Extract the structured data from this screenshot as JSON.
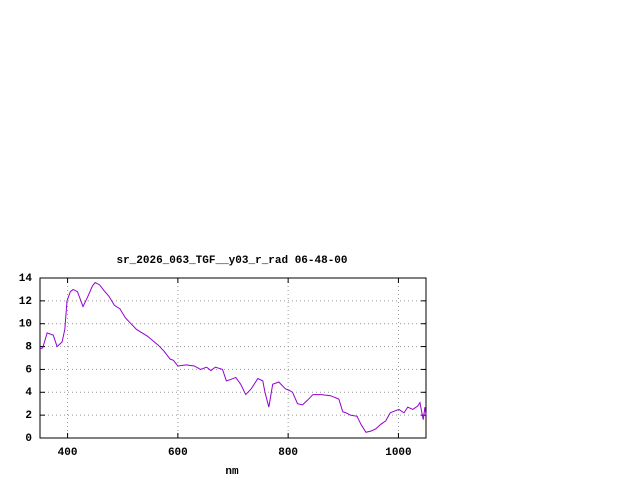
{
  "chart_data": {
    "type": "line",
    "title": "sr_2026_063_TGF__y03_r_rad 06-48-00",
    "x_label": "nm",
    "x": [
      350,
      355,
      363,
      374,
      381,
      390,
      395,
      399,
      405,
      410,
      418,
      428,
      436,
      445,
      450,
      458,
      466,
      475,
      485,
      495,
      505,
      515,
      525,
      535,
      545,
      555,
      565,
      575,
      586,
      592,
      600,
      615,
      630,
      641,
      652,
      660,
      668,
      681,
      688,
      695,
      705,
      714,
      723,
      733,
      745,
      754,
      758,
      765,
      772,
      783,
      795,
      801,
      808,
      817,
      826,
      835,
      845,
      860,
      877,
      892,
      899,
      905,
      913,
      925,
      932,
      941,
      950,
      959,
      968,
      977,
      985,
      990,
      1001,
      1010,
      1017,
      1026,
      1035,
      1039,
      1045,
      1048,
      1050
    ],
    "series": [
      {
        "name": "sr_2026_063_TGF__y03_r_rad",
        "color": "#9400d3",
        "values": [
          7.8,
          7.9,
          9.2,
          9.0,
          8.0,
          8.4,
          9.5,
          12.0,
          12.8,
          13.0,
          12.8,
          11.5,
          12.3,
          13.3,
          13.6,
          13.4,
          12.9,
          12.4,
          11.6,
          11.3,
          10.5,
          10.0,
          9.5,
          9.2,
          8.9,
          8.5,
          8.1,
          7.6,
          6.9,
          6.8,
          6.3,
          6.4,
          6.3,
          6.0,
          6.2,
          5.9,
          6.2,
          6.0,
          5.0,
          5.1,
          5.3,
          4.7,
          3.8,
          4.3,
          5.2,
          5.0,
          4.0,
          2.7,
          4.7,
          4.9,
          4.3,
          4.2,
          4.0,
          3.0,
          2.9,
          3.3,
          3.8,
          3.8,
          3.7,
          3.4,
          2.3,
          2.2,
          2.0,
          1.9,
          1.2,
          0.5,
          0.6,
          0.8,
          1.2,
          1.5,
          2.2,
          2.3,
          2.5,
          2.2,
          2.7,
          2.5,
          2.8,
          3.1,
          1.6,
          2.7,
          2.0
        ]
      }
    ],
    "xlim": [
      350,
      1050
    ],
    "xticks": [
      400,
      600,
      800,
      1000
    ],
    "ylim": [
      0,
      14
    ],
    "yticks": [
      0,
      2,
      4,
      6,
      8,
      10,
      12,
      14
    ],
    "grid": true
  }
}
